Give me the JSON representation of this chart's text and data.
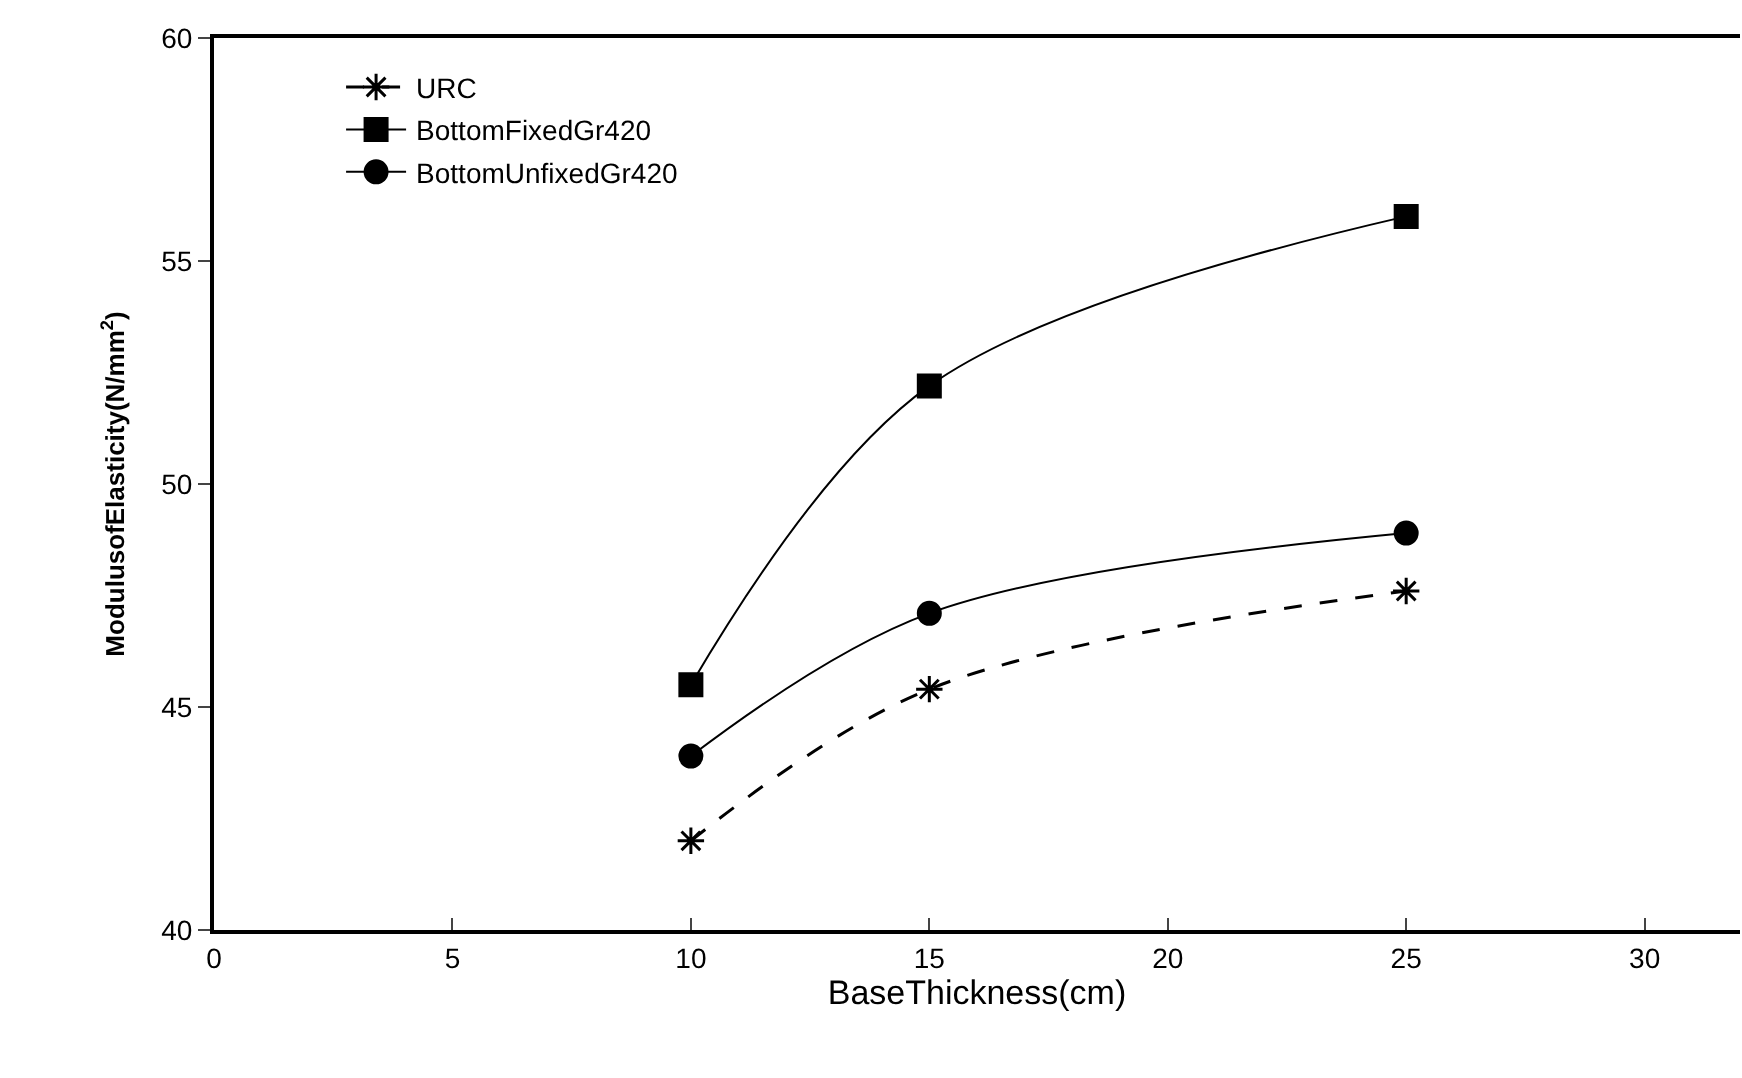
{
  "chart_data": {
    "type": "line",
    "xlabel": "BaseThickness(cm)",
    "ylabel": "ModulusofElasticity(N/mm$^{2}$)",
    "x": [
      10,
      15,
      25
    ],
    "series": [
      {
        "name": "URC",
        "color": "#000000",
        "values": [
          42.0,
          45.4,
          47.6
        ],
        "marker": "cross",
        "line_style": "dashed"
      },
      {
        "name": "BottomFixedGr420",
        "color": "#000000",
        "values": [
          45.5,
          52.2,
          56.0
        ],
        "marker": "square",
        "line_style": "solid"
      },
      {
        "name": "BottomUnfixedGr420",
        "color": "#000000",
        "values": [
          43.9,
          47.1,
          48.9
        ],
        "marker": "circle",
        "line_style": "solid"
      }
    ],
    "xlim": [
      0,
      32
    ],
    "xticks": [
      0,
      5,
      10,
      15,
      20,
      25,
      30
    ],
    "ylim": [
      40,
      60
    ],
    "yticks": [
      40,
      45,
      50,
      55,
      60
    ],
    "legend": "top left"
  }
}
